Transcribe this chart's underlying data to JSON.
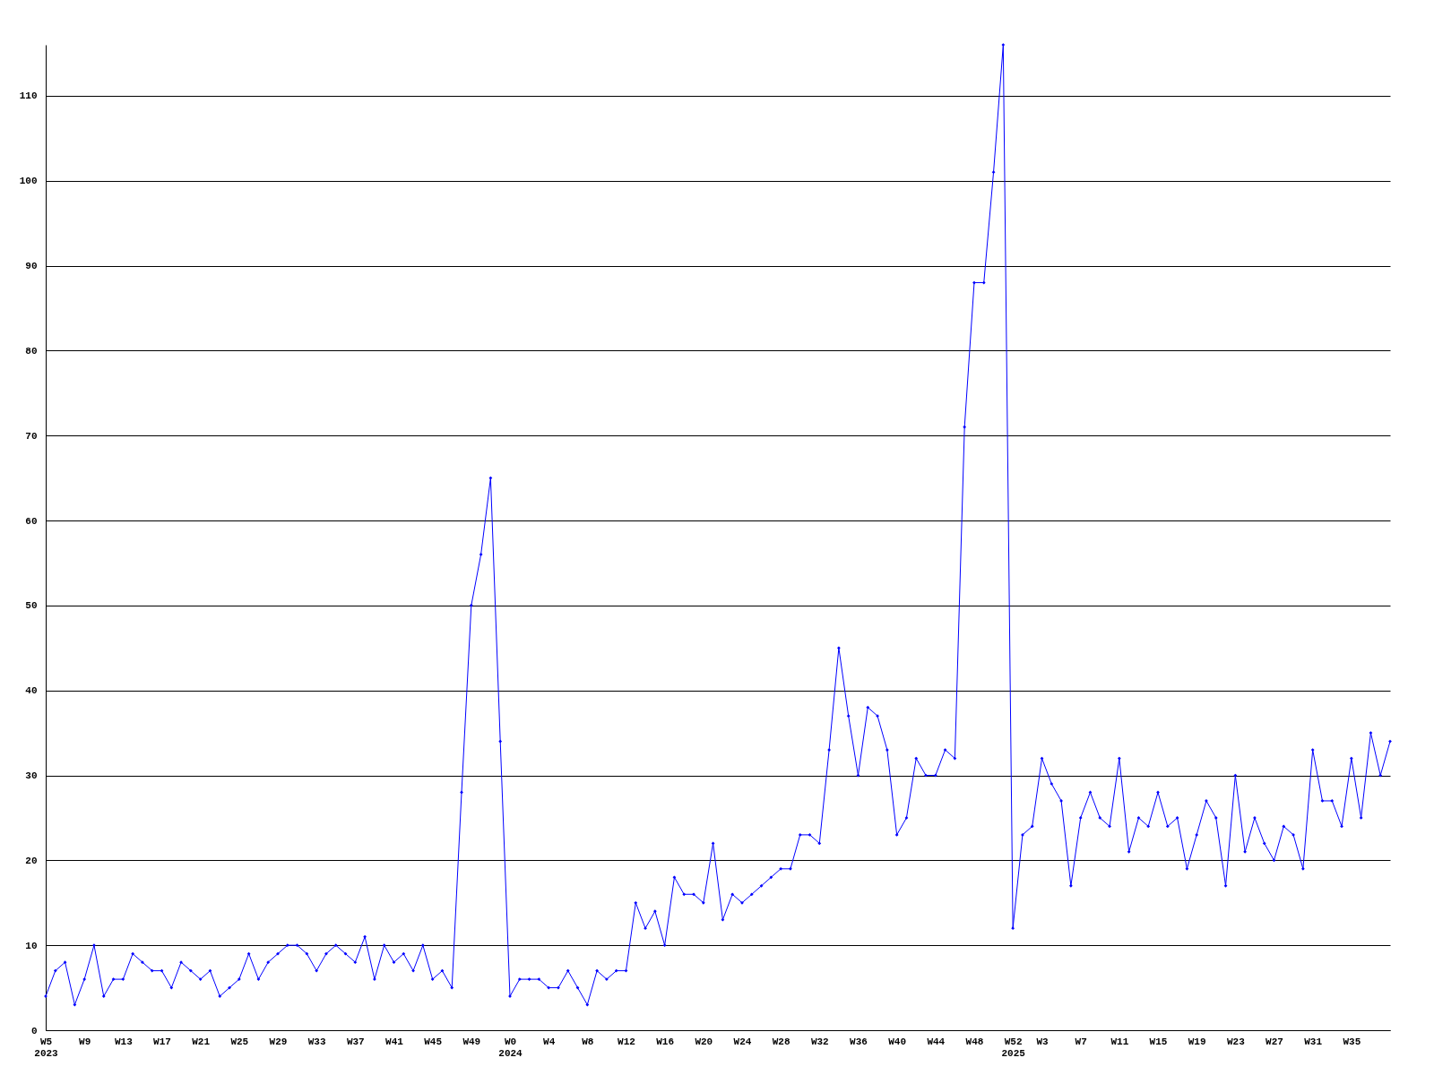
{
  "chart_data": {
    "type": "line",
    "categories": [
      "W5\n2023",
      null,
      null,
      null,
      "W9",
      null,
      null,
      null,
      "W13",
      null,
      null,
      null,
      "W17",
      null,
      null,
      null,
      "W21",
      null,
      null,
      null,
      "W25",
      null,
      null,
      null,
      "W29",
      null,
      null,
      null,
      "W33",
      null,
      null,
      null,
      "W37",
      null,
      null,
      null,
      "W41",
      null,
      null,
      null,
      "W45",
      null,
      null,
      null,
      "W49",
      null,
      null,
      null,
      "W0\n2024",
      null,
      null,
      null,
      "W4",
      null,
      null,
      null,
      "W8",
      null,
      null,
      null,
      "W12",
      null,
      null,
      null,
      "W16",
      null,
      null,
      null,
      "W20",
      null,
      null,
      null,
      "W24",
      null,
      null,
      null,
      "W28",
      null,
      null,
      null,
      "W32",
      null,
      null,
      null,
      "W36",
      null,
      null,
      null,
      "W40",
      null,
      null,
      null,
      "W44",
      null,
      null,
      null,
      "W48",
      null,
      null,
      null,
      "W52\n2025",
      null,
      null,
      "W3",
      null,
      null,
      null,
      "W7",
      null,
      null,
      null,
      "W11",
      null,
      null,
      null,
      "W15",
      null,
      null,
      null,
      "W19",
      null,
      null,
      null,
      "W23",
      null,
      null,
      null,
      "W27",
      null,
      null,
      null,
      "W31",
      null,
      null,
      null,
      "W35",
      null,
      null,
      null,
      null
    ],
    "series": [
      {
        "color": "#0000ff",
        "values": [
          4,
          7,
          8,
          3,
          6,
          10,
          4,
          6,
          6,
          9,
          8,
          7,
          7,
          5,
          8,
          7,
          6,
          7,
          4,
          5,
          6,
          9,
          6,
          8,
          9,
          10,
          10,
          9,
          7,
          9,
          10,
          9,
          8,
          11,
          6,
          10,
          8,
          9,
          7,
          10,
          6,
          7,
          5,
          28,
          50,
          56,
          65,
          34,
          4,
          6,
          6,
          6,
          5,
          5,
          7,
          5,
          3,
          7,
          6,
          7,
          7,
          15,
          12,
          14,
          10,
          18,
          16,
          16,
          15,
          22,
          13,
          16,
          15,
          16,
          17,
          18,
          19,
          19,
          23,
          23,
          22,
          33,
          45,
          37,
          30,
          38,
          37,
          33,
          23,
          25,
          32,
          30,
          30,
          33,
          32,
          71,
          88,
          88,
          101,
          116,
          12,
          23,
          24,
          32,
          29,
          27,
          17,
          25,
          28,
          25,
          24,
          32,
          21,
          25,
          24,
          28,
          24,
          25,
          19,
          23,
          27,
          25,
          17,
          30,
          21,
          25,
          22,
          20,
          24,
          23,
          19,
          33,
          27,
          27,
          24,
          32,
          25,
          35,
          30,
          34
        ]
      }
    ],
    "ylim": [
      0,
      116
    ],
    "yticks": [
      0,
      10,
      20,
      30,
      40,
      50,
      60,
      70,
      80,
      90,
      100,
      110
    ],
    "grid": "y",
    "marker": "diamond",
    "line_style": "solid"
  }
}
